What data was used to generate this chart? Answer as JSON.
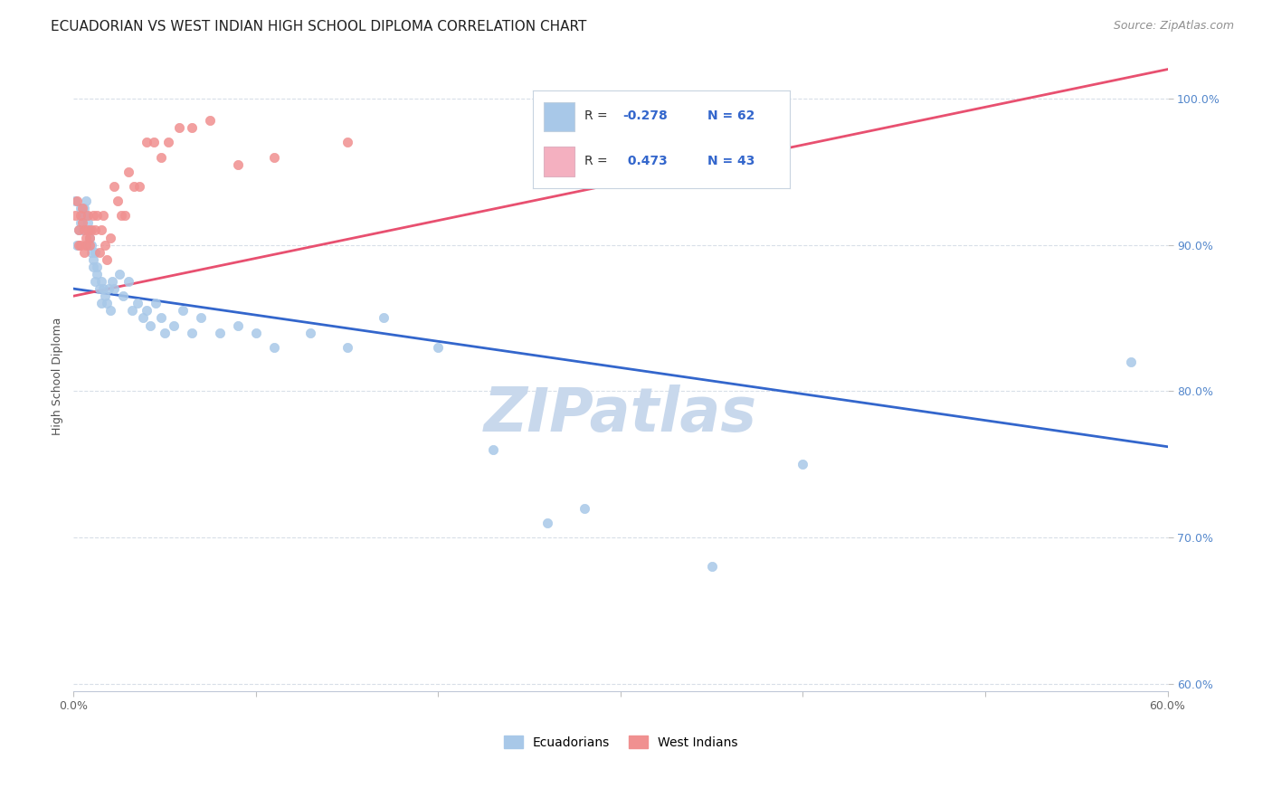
{
  "title": "ECUADORIAN VS WEST INDIAN HIGH SCHOOL DIPLOMA CORRELATION CHART",
  "source": "Source: ZipAtlas.com",
  "ylabel": "High School Diploma",
  "x_min": 0.0,
  "x_max": 0.6,
  "y_min": 0.595,
  "y_max": 1.025,
  "x_ticks": [
    0.0,
    0.1,
    0.2,
    0.3,
    0.4,
    0.5,
    0.6
  ],
  "x_tick_labels": [
    "0.0%",
    "",
    "",
    "",
    "",
    "",
    "60.0%"
  ],
  "y_ticks": [
    0.6,
    0.7,
    0.8,
    0.9,
    1.0
  ],
  "y_tick_labels": [
    "60.0%",
    "70.0%",
    "80.0%",
    "90.0%",
    "100.0%"
  ],
  "watermark": "ZIPatlas",
  "blue_color": "#a8c8e8",
  "pink_color": "#f4b0c0",
  "blue_line_color": "#3366cc",
  "pink_line_color": "#e85070",
  "scatter_blue_color": "#a8c8e8",
  "scatter_pink_color": "#f09090",
  "background_color": "#ffffff",
  "grid_color": "#d8dfe8",
  "title_fontsize": 11,
  "axis_label_fontsize": 9,
  "tick_fontsize": 9,
  "source_fontsize": 9,
  "watermark_fontsize": 48,
  "watermark_color": "#c8d8ec",
  "y_tick_color": "#5588cc",
  "x_tick_color": "#606060",
  "ecuadorians_x": [
    0.001,
    0.002,
    0.003,
    0.004,
    0.004,
    0.005,
    0.005,
    0.006,
    0.006,
    0.007,
    0.007,
    0.008,
    0.008,
    0.009,
    0.009,
    0.01,
    0.01,
    0.011,
    0.011,
    0.012,
    0.012,
    0.013,
    0.013,
    0.014,
    0.015,
    0.015,
    0.016,
    0.017,
    0.018,
    0.019,
    0.02,
    0.021,
    0.022,
    0.025,
    0.027,
    0.03,
    0.032,
    0.035,
    0.038,
    0.04,
    0.042,
    0.045,
    0.048,
    0.05,
    0.055,
    0.06,
    0.065,
    0.07,
    0.08,
    0.09,
    0.1,
    0.11,
    0.13,
    0.15,
    0.17,
    0.2,
    0.23,
    0.26,
    0.28,
    0.35,
    0.4,
    0.58
  ],
  "ecuadorians_y": [
    0.93,
    0.9,
    0.91,
    0.925,
    0.915,
    0.92,
    0.91,
    0.925,
    0.92,
    0.93,
    0.92,
    0.915,
    0.9,
    0.91,
    0.905,
    0.9,
    0.895,
    0.89,
    0.885,
    0.895,
    0.875,
    0.885,
    0.88,
    0.87,
    0.875,
    0.86,
    0.87,
    0.865,
    0.86,
    0.87,
    0.855,
    0.875,
    0.87,
    0.88,
    0.865,
    0.875,
    0.855,
    0.86,
    0.85,
    0.855,
    0.845,
    0.86,
    0.85,
    0.84,
    0.845,
    0.855,
    0.84,
    0.85,
    0.84,
    0.845,
    0.84,
    0.83,
    0.84,
    0.83,
    0.85,
    0.83,
    0.76,
    0.71,
    0.72,
    0.68,
    0.75,
    0.82
  ],
  "west_indians_x": [
    0.001,
    0.002,
    0.003,
    0.003,
    0.004,
    0.004,
    0.005,
    0.005,
    0.006,
    0.006,
    0.007,
    0.007,
    0.008,
    0.008,
    0.009,
    0.009,
    0.01,
    0.011,
    0.012,
    0.013,
    0.014,
    0.015,
    0.016,
    0.017,
    0.018,
    0.02,
    0.022,
    0.024,
    0.026,
    0.028,
    0.03,
    0.033,
    0.036,
    0.04,
    0.044,
    0.048,
    0.052,
    0.058,
    0.065,
    0.075,
    0.09,
    0.11,
    0.15
  ],
  "west_indians_y": [
    0.92,
    0.93,
    0.9,
    0.91,
    0.9,
    0.92,
    0.915,
    0.925,
    0.91,
    0.895,
    0.905,
    0.9,
    0.92,
    0.91,
    0.905,
    0.9,
    0.91,
    0.92,
    0.91,
    0.92,
    0.895,
    0.91,
    0.92,
    0.9,
    0.89,
    0.905,
    0.94,
    0.93,
    0.92,
    0.92,
    0.95,
    0.94,
    0.94,
    0.97,
    0.97,
    0.96,
    0.97,
    0.98,
    0.98,
    0.985,
    0.955,
    0.96,
    0.97
  ],
  "blue_line_x0": 0.0,
  "blue_line_y0": 0.87,
  "blue_line_x1": 0.6,
  "blue_line_y1": 0.762,
  "pink_line_x0": 0.0,
  "pink_line_y0": 0.865,
  "pink_line_x1": 0.6,
  "pink_line_y1": 1.02
}
